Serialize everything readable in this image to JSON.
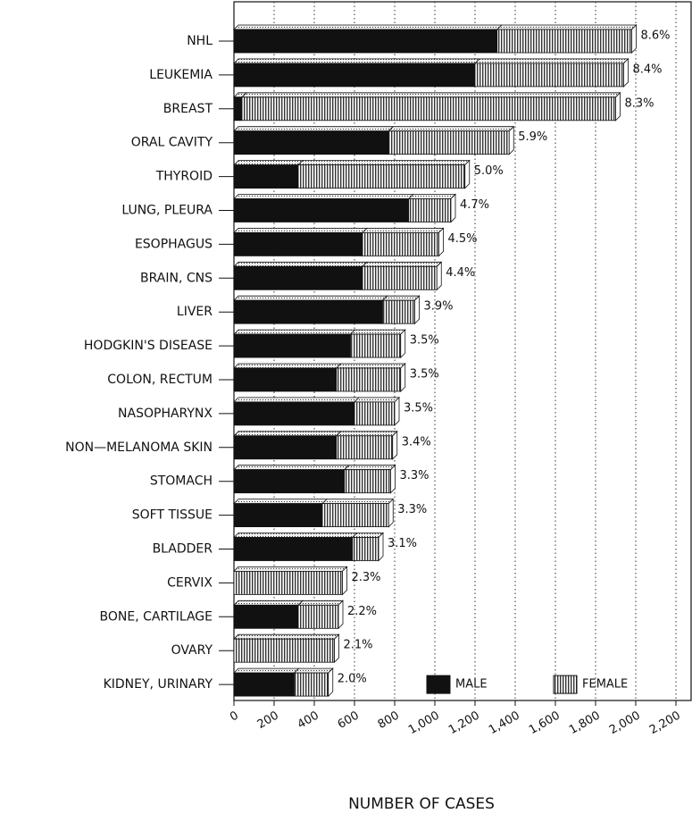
{
  "chart_data": {
    "type": "stacked_barh",
    "x_label": "NUMBER OF CASES",
    "categories": [
      "NHL",
      "LEUKEMIA",
      "BREAST",
      "ORAL CAVITY",
      "THYROID",
      "LUNG, PLEURA",
      "ESOPHAGUS",
      "BRAIN, CNS",
      "LIVER",
      "HODGKIN'S DISEASE",
      "COLON, RECTUM",
      "NASOPHARYNX",
      "NON—MELANOMA SKIN",
      "STOMACH",
      "SOFT TISSUE",
      "BLADDER",
      "CERVIX",
      "BONE, CARTILAGE",
      "OVARY",
      "KIDNEY, URINARY"
    ],
    "series": [
      {
        "name": "MALE",
        "color": "#111111",
        "values": [
          1310,
          1200,
          40,
          770,
          320,
          870,
          640,
          640,
          740,
          580,
          510,
          600,
          510,
          550,
          440,
          590,
          0,
          320,
          0,
          300
        ]
      },
      {
        "name": "FEMALE",
        "color": "#bbbbbb",
        "values": [
          670,
          740,
          1860,
          600,
          830,
          210,
          380,
          370,
          160,
          250,
          320,
          200,
          280,
          230,
          330,
          130,
          540,
          200,
          500,
          170
        ]
      }
    ],
    "annotations": [
      "8.6%",
      "8.4%",
      "8.3%",
      "5.9%",
      "5.0%",
      "4.7%",
      "4.5%",
      "4.4%",
      "3.9%",
      "3.5%",
      "3.5%",
      "3.5%",
      "3.4%",
      "3.3%",
      "3.3%",
      "3.1%",
      "2.3%",
      "2.2%",
      "2.1%",
      "2.0%"
    ],
    "xlim": [
      0,
      2200
    ],
    "xticks": [
      0,
      200,
      400,
      600,
      800,
      {
        "value": 1000,
        "label": "1,000"
      },
      {
        "value": 1200,
        "label": "1,200"
      },
      {
        "value": 1400,
        "label": "1,400"
      },
      {
        "value": 1600,
        "label": "1,600"
      },
      {
        "value": 1800,
        "label": "1,800"
      },
      {
        "value": 2000,
        "label": "2,000"
      },
      {
        "value": 2200,
        "label": "2,200"
      }
    ],
    "grid": true,
    "legend": "lower right"
  }
}
